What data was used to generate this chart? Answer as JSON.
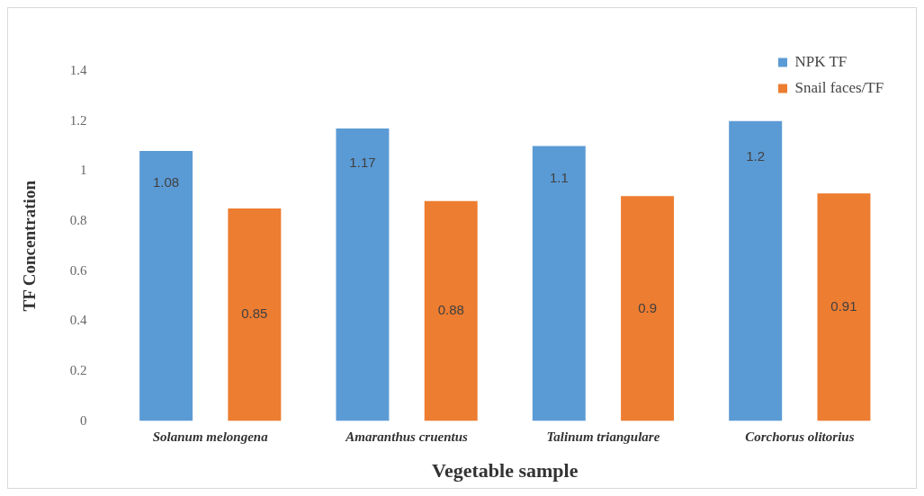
{
  "chart_data": {
    "type": "bar",
    "xlabel": "Vegetable sample",
    "ylabel": "TF Concentration",
    "categories": [
      "Solanum melongena",
      "Amaranthus cruentus",
      "Talinum triangulare",
      "Corchorus olitorius"
    ],
    "series": [
      {
        "name": "NPK TF",
        "color": "#5b9bd5",
        "values": [
          1.08,
          1.17,
          1.1,
          1.2
        ]
      },
      {
        "name": "Snail faces/TF",
        "color": "#ed7d31",
        "values": [
          0.85,
          0.88,
          0.9,
          0.91
        ]
      }
    ],
    "ylim": [
      0,
      1.4
    ],
    "yticks": [
      0,
      0.2,
      0.4,
      0.6,
      0.8,
      1,
      1.2,
      1.4
    ],
    "grid": false,
    "legend": "top right",
    "data_labels": true
  }
}
